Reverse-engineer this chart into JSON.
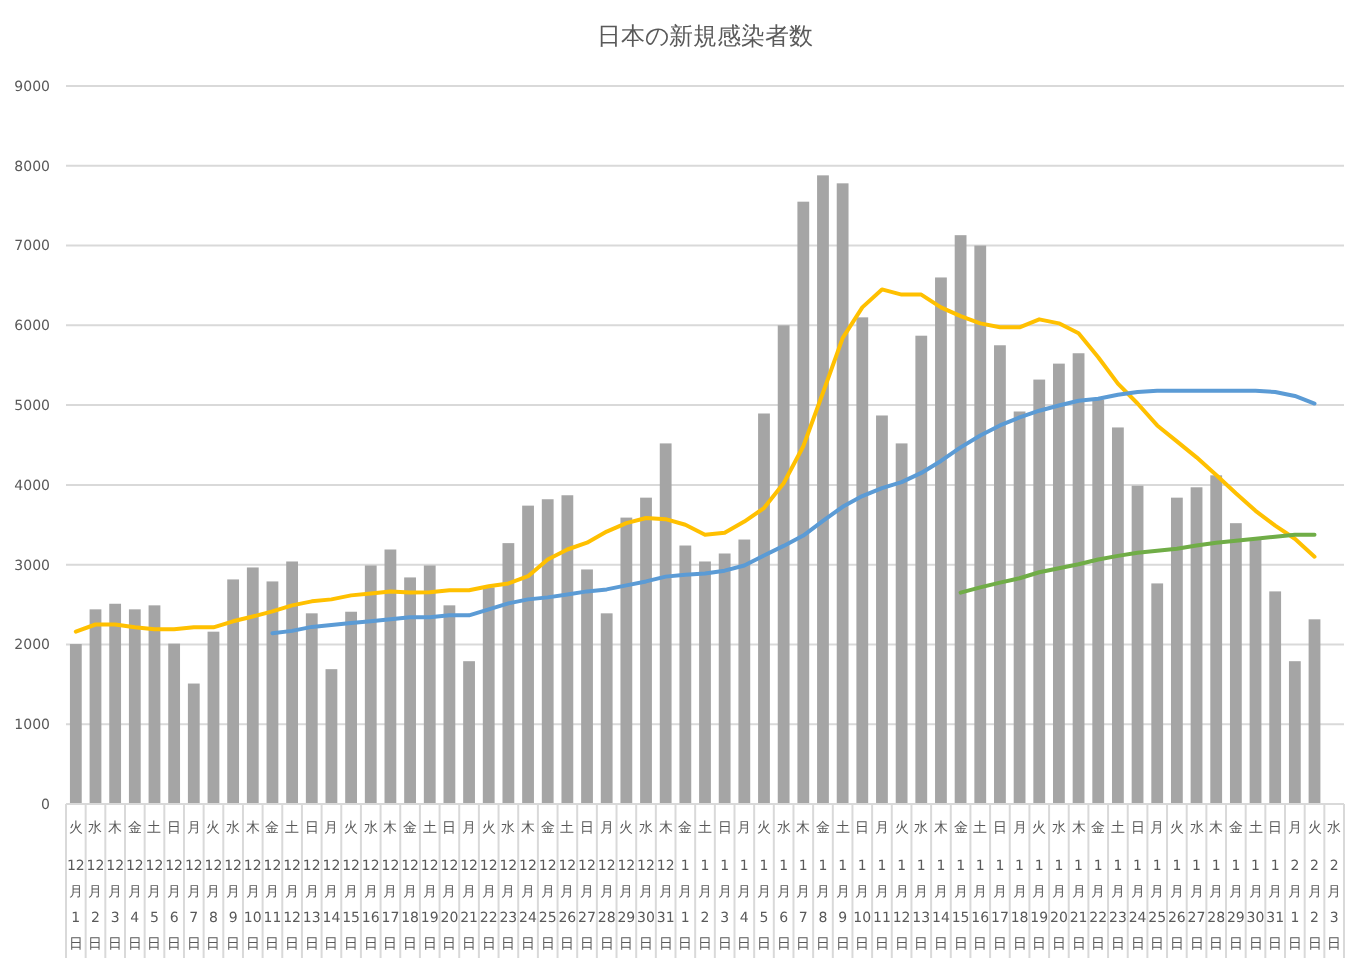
{
  "chart_data": {
    "type": "bar",
    "title": "日本の新規感染者数",
    "categories": [
      "火\n12\n月\n1\n日",
      "水\n12\n月\n2\n日",
      "木\n12\n月\n3\n日",
      "金\n12\n月\n4\n日",
      "土\n12\n月\n5\n日",
      "日\n12\n月\n6\n日",
      "月\n12\n月\n7\n日",
      "火\n12\n月\n8\n日",
      "水\n12\n月\n9\n日",
      "木\n12\n月\n10\n日",
      "金\n12\n月\n11\n日",
      "土\n12\n月\n12\n日",
      "日\n12\n月\n13\n日",
      "月\n12\n月\n14\n日",
      "火\n12\n月\n15\n日",
      "水\n12\n月\n16\n日",
      "木\n12\n月\n17\n日",
      "金\n12\n月\n18\n日",
      "土\n12\n月\n19\n日",
      "日\n12\n月\n20\n日",
      "月\n12\n月\n21\n日",
      "火\n12\n月\n22\n日",
      "水\n12\n月\n23\n日",
      "木\n12\n月\n24\n日",
      "金\n12\n月\n25\n日",
      "土\n12\n月\n26\n日",
      "日\n12\n月\n27\n日",
      "月\n12\n月\n28\n日",
      "火\n12\n月\n29\n日",
      "水\n12\n月\n30\n日",
      "木\n12\n月\n31\n日",
      "金\n1\n月\n1\n日",
      "土\n1\n月\n2\n日",
      "日\n1\n月\n3\n日",
      "月\n1\n月\n4\n日",
      "火\n1\n月\n5\n日",
      "水\n1\n月\n6\n日",
      "木\n1\n月\n7\n日",
      "金\n1\n月\n8\n日",
      "土\n1\n月\n9\n日",
      "日\n1\n月\n10\n日",
      "月\n1\n月\n11\n日",
      "火\n1\n月\n12\n日",
      "水\n1\n月\n13\n日",
      "木\n1\n月\n14\n日",
      "金\n1\n月\n15\n日",
      "土\n1\n月\n16\n日",
      "日\n1\n月\n17\n日",
      "月\n1\n月\n18\n日",
      "火\n1\n月\n19\n日",
      "水\n1\n月\n20\n日",
      "木\n1\n月\n21\n日",
      "金\n1\n月\n22\n日",
      "土\n1\n月\n23\n日",
      "日\n1\n月\n24\n日",
      "月\n1\n月\n25\n日",
      "火\n1\n月\n26\n日",
      "水\n1\n月\n27\n日",
      "木\n1\n月\n28\n日",
      "金\n1\n月\n29\n日",
      "土\n1\n月\n30\n日",
      "日\n1\n月\n31\n日",
      "月\n2\n月\n1\n日",
      "火\n2\n月\n2\n日",
      "水\n2\n月\n3\n日"
    ],
    "series": [
      {
        "color": "#a5a5a5",
        "values": [
          2005,
          2440,
          2510,
          2440,
          2490,
          2010,
          1510,
          2160,
          2815,
          2965,
          2790,
          3040,
          2390,
          1690,
          2410,
          2990,
          3190,
          2840,
          2990,
          2490,
          1790,
          2715,
          3270,
          3740,
          3820,
          3870,
          2940,
          2390,
          3590,
          3840,
          4520,
          3240,
          3040,
          3140,
          3315,
          4895,
          6000,
          7550,
          7880,
          7780,
          6100,
          4870,
          4520,
          5870,
          6600,
          7130,
          7000,
          5750,
          4920,
          5320,
          5520,
          5650,
          5070,
          4720,
          3990,
          2765,
          3840,
          3970,
          4120,
          3520,
          3315,
          2665,
          1790,
          2315,
          null
        ]
      },
      {
        "type": "line",
        "color": "#ffc000",
        "values": [
          2160,
          2250,
          2250,
          2215,
          2190,
          2190,
          2215,
          2215,
          2290,
          2350,
          2415,
          2490,
          2540,
          2565,
          2615,
          2640,
          2665,
          2650,
          2655,
          2680,
          2680,
          2730,
          2765,
          2855,
          3065,
          3190,
          3275,
          3415,
          3520,
          3585,
          3570,
          3500,
          3375,
          3400,
          3540,
          3710,
          4020,
          4485,
          5155,
          5840,
          6225,
          6450,
          6385,
          6385,
          6225,
          6115,
          6025,
          5975,
          5975,
          6075,
          6025,
          5900,
          5600,
          5270,
          5020,
          4745,
          4545,
          4345,
          4125,
          3895,
          3675,
          3490,
          3325,
          3100,
          null
        ]
      },
      {
        "type": "line",
        "color": "#5b9bd5",
        "values": [
          null,
          null,
          null,
          null,
          null,
          null,
          null,
          null,
          null,
          null,
          2140,
          2170,
          2220,
          2245,
          2270,
          2290,
          2315,
          2340,
          2340,
          2365,
          2365,
          2440,
          2515,
          2565,
          2590,
          2625,
          2665,
          2690,
          2740,
          2790,
          2850,
          2875,
          2890,
          2925,
          2990,
          3115,
          3235,
          3365,
          3550,
          3725,
          3860,
          3960,
          4035,
          4150,
          4300,
          4470,
          4620,
          4745,
          4845,
          4930,
          4995,
          5055,
          5080,
          5130,
          5165,
          5180,
          5180,
          5180,
          5180,
          5180,
          5180,
          5165,
          5115,
          5020,
          null
        ]
      },
      {
        "type": "line",
        "color": "#70ad47",
        "values": [
          null,
          null,
          null,
          null,
          null,
          null,
          null,
          null,
          null,
          null,
          null,
          null,
          null,
          null,
          null,
          null,
          null,
          null,
          null,
          null,
          null,
          null,
          null,
          null,
          null,
          null,
          null,
          null,
          null,
          null,
          null,
          null,
          null,
          null,
          null,
          null,
          null,
          null,
          null,
          null,
          null,
          null,
          null,
          null,
          null,
          2650,
          2715,
          2775,
          2830,
          2905,
          2955,
          3005,
          3065,
          3110,
          3150,
          3175,
          3200,
          3240,
          3275,
          3300,
          3325,
          3350,
          3375,
          3375,
          null
        ]
      }
    ],
    "ylim": [
      0,
      9000
    ],
    "yticks": [
      0,
      1000,
      2000,
      3000,
      4000,
      5000,
      6000,
      7000,
      8000,
      9000
    ],
    "grid": "y"
  }
}
